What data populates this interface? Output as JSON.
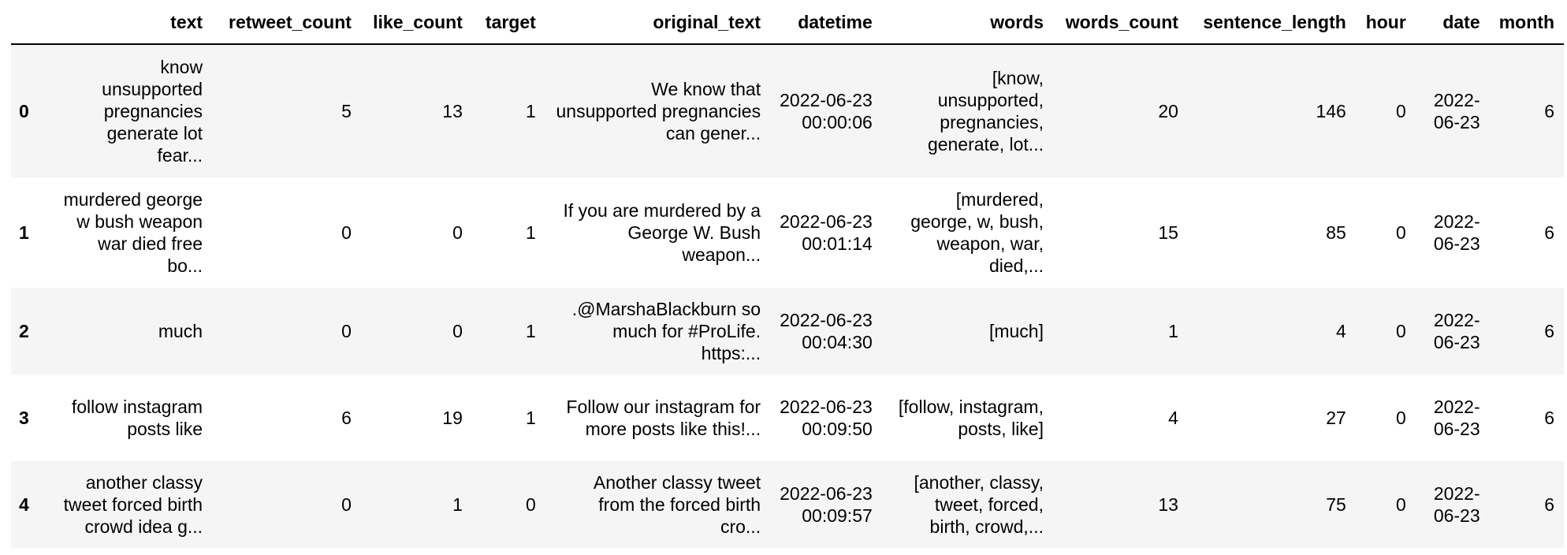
{
  "dataframe": {
    "columns": [
      {
        "key": "text",
        "label": "text"
      },
      {
        "key": "retweet_count",
        "label": "retweet_count"
      },
      {
        "key": "like_count",
        "label": "like_count"
      },
      {
        "key": "target",
        "label": "target"
      },
      {
        "key": "original_text",
        "label": "original_text"
      },
      {
        "key": "datetime",
        "label": "datetime"
      },
      {
        "key": "words",
        "label": "words"
      },
      {
        "key": "words_count",
        "label": "words_count"
      },
      {
        "key": "sentence_length",
        "label": "sentence_length"
      },
      {
        "key": "hour",
        "label": "hour"
      },
      {
        "key": "date",
        "label": "date"
      },
      {
        "key": "month",
        "label": "month"
      }
    ],
    "rows": [
      {
        "index": "0",
        "text": "know unsupported pregnancies generate lot fear...",
        "retweet_count": "5",
        "like_count": "13",
        "target": "1",
        "original_text": "We know that unsupported pregnancies can gener...",
        "datetime": "2022-06-23 00:00:06",
        "words": "[know, unsupported, pregnancies, generate, lot...",
        "words_count": "20",
        "sentence_length": "146",
        "hour": "0",
        "date": "2022-06-23",
        "month": "6"
      },
      {
        "index": "1",
        "text": "murdered george w bush weapon war died free bo...",
        "retweet_count": "0",
        "like_count": "0",
        "target": "1",
        "original_text": "If you are murdered by a George W. Bush weapon...",
        "datetime": "2022-06-23 00:01:14",
        "words": "[murdered, george, w, bush, weapon, war, died,...",
        "words_count": "15",
        "sentence_length": "85",
        "hour": "0",
        "date": "2022-06-23",
        "month": "6"
      },
      {
        "index": "2",
        "text": "much",
        "retweet_count": "0",
        "like_count": "0",
        "target": "1",
        "original_text": ".@MarshaBlackburn so much for #ProLife. https:...",
        "datetime": "2022-06-23 00:04:30",
        "words": "[much]",
        "words_count": "1",
        "sentence_length": "4",
        "hour": "0",
        "date": "2022-06-23",
        "month": "6"
      },
      {
        "index": "3",
        "text": "follow instagram posts like",
        "retweet_count": "6",
        "like_count": "19",
        "target": "1",
        "original_text": "Follow our instagram for more posts like this!...",
        "datetime": "2022-06-23 00:09:50",
        "words": "[follow, instagram, posts, like]",
        "words_count": "4",
        "sentence_length": "27",
        "hour": "0",
        "date": "2022-06-23",
        "month": "6"
      },
      {
        "index": "4",
        "text": "another classy tweet forced birth crowd idea g...",
        "retweet_count": "0",
        "like_count": "1",
        "target": "0",
        "original_text": "Another classy tweet from the forced birth cro...",
        "datetime": "2022-06-23 00:09:57",
        "words": "[another, classy, tweet, forced, birth, crowd,...",
        "words_count": "13",
        "sentence_length": "75",
        "hour": "0",
        "date": "2022-06-23",
        "month": "6"
      }
    ]
  }
}
